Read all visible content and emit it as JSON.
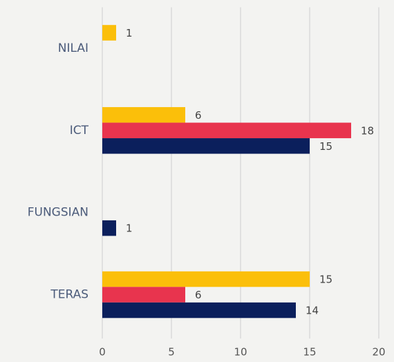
{
  "chart_data": {
    "type": "hbar",
    "categories": [
      "NILAI",
      "ICT",
      "FUNGSIAN",
      "TERAS"
    ],
    "series": [
      {
        "color": "#fbbf0a",
        "values": [
          1,
          6,
          null,
          15
        ]
      },
      {
        "color": "#e8344e",
        "values": [
          null,
          18,
          null,
          6
        ]
      },
      {
        "color": "#0b1f5c",
        "values": [
          null,
          15,
          1,
          14
        ]
      }
    ],
    "xlim": [
      0,
      20
    ],
    "xticks": [
      0,
      5,
      10,
      15,
      20
    ],
    "grid": true
  }
}
